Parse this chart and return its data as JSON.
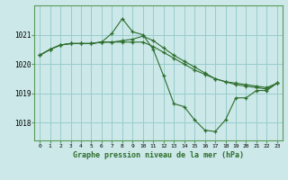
{
  "bg_color": "#cce8e8",
  "grid_color": "#99cccc",
  "line_color": "#2d6e2d",
  "marker": "+",
  "title": "Graphe pression niveau de la mer (hPa)",
  "ylabel_ticks": [
    1018,
    1019,
    1020,
    1021
  ],
  "xlim": [
    -0.5,
    23.5
  ],
  "ylim": [
    1017.4,
    1022.0
  ],
  "series": [
    {
      "x": [
        0,
        1,
        2,
        3,
        4,
        5,
        6,
        7,
        8,
        9,
        10,
        11,
        12,
        13,
        14,
        15,
        16,
        17,
        18,
        19,
        20,
        21,
        22,
        23
      ],
      "y": [
        1020.3,
        1020.5,
        1020.65,
        1020.7,
        1020.7,
        1020.7,
        1020.75,
        1021.05,
        1021.55,
        1021.1,
        1021.0,
        1020.5,
        1019.6,
        1018.65,
        1018.55,
        1018.1,
        1017.75,
        1017.7,
        1018.1,
        1018.85,
        1018.85,
        1019.1,
        1019.1,
        1019.35
      ]
    },
    {
      "x": [
        0,
        1,
        2,
        3,
        4,
        5,
        6,
        7,
        8,
        9,
        10,
        11,
        12,
        13,
        14,
        15,
        16,
        17,
        18,
        19,
        20,
        21,
        22,
        23
      ],
      "y": [
        1020.3,
        1020.5,
        1020.65,
        1020.7,
        1020.7,
        1020.7,
        1020.75,
        1020.75,
        1020.8,
        1020.85,
        1020.95,
        1020.8,
        1020.55,
        1020.3,
        1020.1,
        1019.9,
        1019.7,
        1019.5,
        1019.4,
        1019.3,
        1019.25,
        1019.2,
        1019.15,
        1019.35
      ]
    },
    {
      "x": [
        0,
        1,
        2,
        3,
        4,
        5,
        6,
        7,
        8,
        9,
        10,
        11,
        12,
        13,
        14,
        15,
        16,
        17,
        18,
        19,
        20,
        21,
        22,
        23
      ],
      "y": [
        1020.3,
        1020.5,
        1020.65,
        1020.7,
        1020.7,
        1020.7,
        1020.75,
        1020.75,
        1020.75,
        1020.75,
        1020.75,
        1020.6,
        1020.4,
        1020.2,
        1020.0,
        1019.8,
        1019.65,
        1019.5,
        1019.4,
        1019.35,
        1019.3,
        1019.25,
        1019.2,
        1019.35
      ]
    }
  ]
}
